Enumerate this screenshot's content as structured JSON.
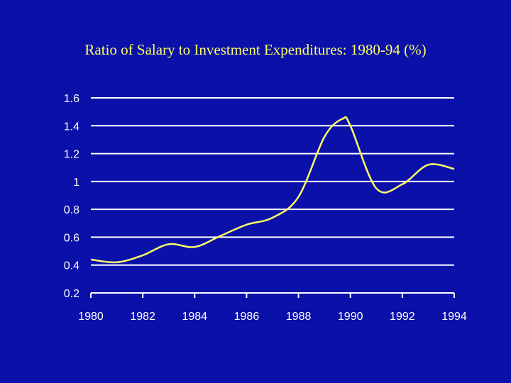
{
  "chart_data": {
    "type": "line",
    "title": "Ratio of Salary to Investment Expenditures: 1980-94 (%)",
    "xlabel": "",
    "ylabel": "",
    "x": [
      1980,
      1981,
      1982,
      1983,
      1984,
      1985,
      1986,
      1987,
      1988,
      1989,
      1989.7,
      1990,
      1991,
      1992,
      1993,
      1994
    ],
    "series": [
      {
        "values": [
          0.44,
          0.42,
          0.47,
          0.55,
          0.53,
          0.61,
          0.69,
          0.74,
          0.89,
          1.32,
          1.45,
          1.4,
          0.95,
          0.98,
          1.12,
          1.09
        ]
      }
    ],
    "xlim": [
      1980,
      1994
    ],
    "ylim": [
      0.2,
      1.6
    ],
    "xticks": [
      "1980",
      "1982",
      "1984",
      "1986",
      "1988",
      "1990",
      "1992",
      "1994"
    ],
    "yticks": [
      "1.6",
      "1.4",
      "1.2",
      "1",
      "0.8",
      "0.6",
      "0.4",
      "0.2"
    ],
    "grid": true,
    "colors": {
      "background": "#0a10a8",
      "line": "#ffff66",
      "grid": "#ffffff",
      "text": "#ffffff",
      "title": "#ffff66"
    }
  }
}
